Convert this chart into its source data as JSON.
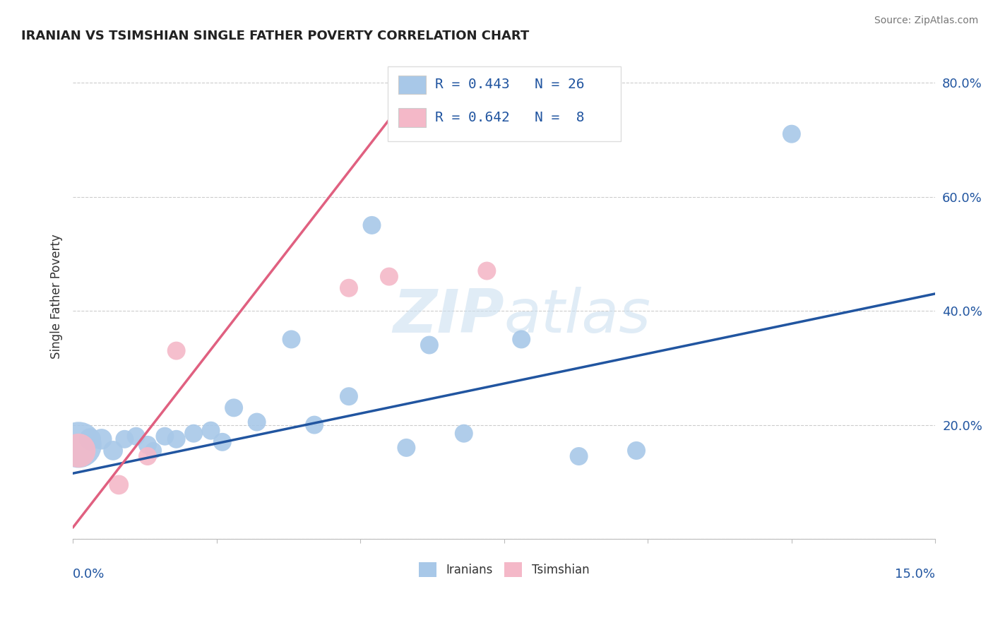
{
  "title": "IRANIAN VS TSIMSHIAN SINGLE FATHER POVERTY CORRELATION CHART",
  "source": "Source: ZipAtlas.com",
  "ylabel": "Single Father Poverty",
  "xlim": [
    0.0,
    0.15
  ],
  "ylim": [
    0.0,
    0.85
  ],
  "yticks": [
    0.0,
    0.2,
    0.4,
    0.6,
    0.8
  ],
  "ytick_labels": [
    "",
    "20.0%",
    "40.0%",
    "60.0%",
    "80.0%"
  ],
  "iranians_R": 0.443,
  "iranians_N": 26,
  "tsimshian_R": 0.642,
  "tsimshian_N": 8,
  "iranians_color": "#a8c8e8",
  "iranians_line_color": "#2155a0",
  "tsimshian_color": "#f4b8c8",
  "tsimshian_line_color": "#e06080",
  "watermark_zip": "ZIP",
  "watermark_atlas": "atlas",
  "background_color": "#ffffff",
  "iranians_x": [
    0.001,
    0.003,
    0.005,
    0.007,
    0.009,
    0.011,
    0.013,
    0.014,
    0.016,
    0.018,
    0.021,
    0.024,
    0.026,
    0.028,
    0.032,
    0.038,
    0.042,
    0.048,
    0.052,
    0.058,
    0.062,
    0.068,
    0.078,
    0.088,
    0.098,
    0.125
  ],
  "iranians_y": [
    0.165,
    0.175,
    0.175,
    0.155,
    0.175,
    0.18,
    0.165,
    0.155,
    0.18,
    0.175,
    0.185,
    0.19,
    0.17,
    0.23,
    0.205,
    0.35,
    0.2,
    0.25,
    0.55,
    0.16,
    0.34,
    0.185,
    0.35,
    0.145,
    0.155,
    0.71
  ],
  "iranians_sizes": [
    2200,
    500,
    450,
    400,
    350,
    350,
    350,
    300,
    350,
    350,
    350,
    350,
    350,
    350,
    350,
    350,
    350,
    350,
    350,
    350,
    350,
    350,
    350,
    350,
    350,
    350
  ],
  "tsimshian_x": [
    0.001,
    0.008,
    0.013,
    0.018,
    0.048,
    0.055,
    0.068,
    0.072
  ],
  "tsimshian_y": [
    0.155,
    0.095,
    0.145,
    0.33,
    0.44,
    0.46,
    0.72,
    0.47
  ],
  "tsimshian_sizes": [
    1200,
    400,
    350,
    350,
    350,
    350,
    350,
    350
  ],
  "iran_line_x0": 0.0,
  "iran_line_y0": 0.115,
  "iran_line_x1": 0.15,
  "iran_line_y1": 0.43,
  "tsim_line_x0": 0.0,
  "tsim_line_y0": 0.02,
  "tsim_line_x1": 0.06,
  "tsim_line_y1": 0.8
}
